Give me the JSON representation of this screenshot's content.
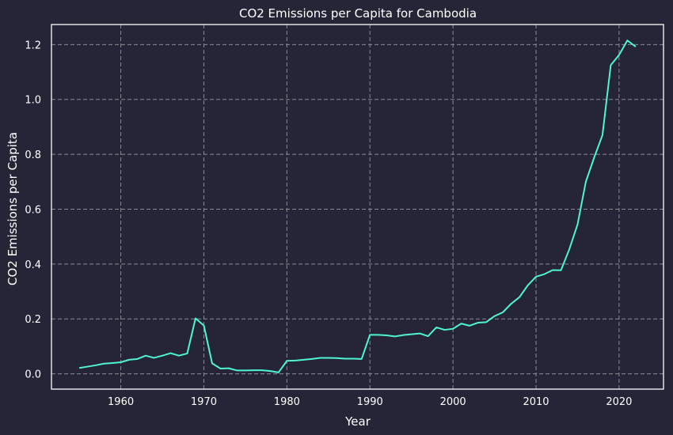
{
  "chart_data": {
    "type": "line",
    "title": "CO2 Emissions per Capita for Cambodia",
    "xlabel": "Year",
    "ylabel": "CO2 Emissions per Capita",
    "xlim": [
      1951.65,
      2025.35
    ],
    "ylim": [
      -0.056,
      1.273
    ],
    "x_ticks": [
      1960,
      1970,
      1980,
      1990,
      2000,
      2010,
      2020
    ],
    "y_ticks": [
      0.0,
      0.2,
      0.4,
      0.6,
      0.8,
      1.0,
      1.2
    ],
    "x_tick_labels": [
      "1960",
      "1970",
      "1980",
      "1990",
      "2000",
      "2010",
      "2020"
    ],
    "y_tick_labels": [
      "0.0",
      "0.2",
      "0.4",
      "0.6",
      "0.8",
      "1.0",
      "1.2"
    ],
    "grid": true,
    "colors": {
      "background": "#262537",
      "line": "#4ff5d2",
      "grid": "#8a8a8f",
      "spine": "#ffffff",
      "text": "#ffffff"
    },
    "series": [
      {
        "x": [
          1955,
          1956,
          1957,
          1958,
          1959,
          1960,
          1961,
          1962,
          1963,
          1964,
          1965,
          1966,
          1967,
          1968,
          1969,
          1970,
          1971,
          1972,
          1973,
          1974,
          1975,
          1976,
          1977,
          1978,
          1979,
          1980,
          1981,
          1982,
          1983,
          1984,
          1985,
          1986,
          1987,
          1988,
          1989,
          1990,
          1991,
          1992,
          1993,
          1994,
          1995,
          1996,
          1997,
          1998,
          1999,
          2000,
          2001,
          2002,
          2003,
          2004,
          2005,
          2006,
          2007,
          2008,
          2009,
          2010,
          2011,
          2012,
          2013,
          2014,
          2015,
          2016,
          2017,
          2018,
          2019,
          2020,
          2021,
          2022
        ],
        "values": [
          0.021,
          0.026,
          0.031,
          0.037,
          0.039,
          0.042,
          0.051,
          0.054,
          0.066,
          0.058,
          0.066,
          0.075,
          0.066,
          0.074,
          0.202,
          0.176,
          0.038,
          0.019,
          0.02,
          0.012,
          0.012,
          0.013,
          0.013,
          0.01,
          0.005,
          0.047,
          0.048,
          0.051,
          0.054,
          0.058,
          0.058,
          0.057,
          0.055,
          0.055,
          0.054,
          0.142,
          0.142,
          0.14,
          0.136,
          0.141,
          0.144,
          0.147,
          0.137,
          0.169,
          0.16,
          0.164,
          0.183,
          0.175,
          0.186,
          0.188,
          0.21,
          0.224,
          0.255,
          0.279,
          0.322,
          0.354,
          0.363,
          0.378,
          0.377,
          0.453,
          0.544,
          0.7,
          0.788,
          0.87,
          1.125,
          1.162,
          1.215,
          1.192
        ]
      }
    ]
  }
}
